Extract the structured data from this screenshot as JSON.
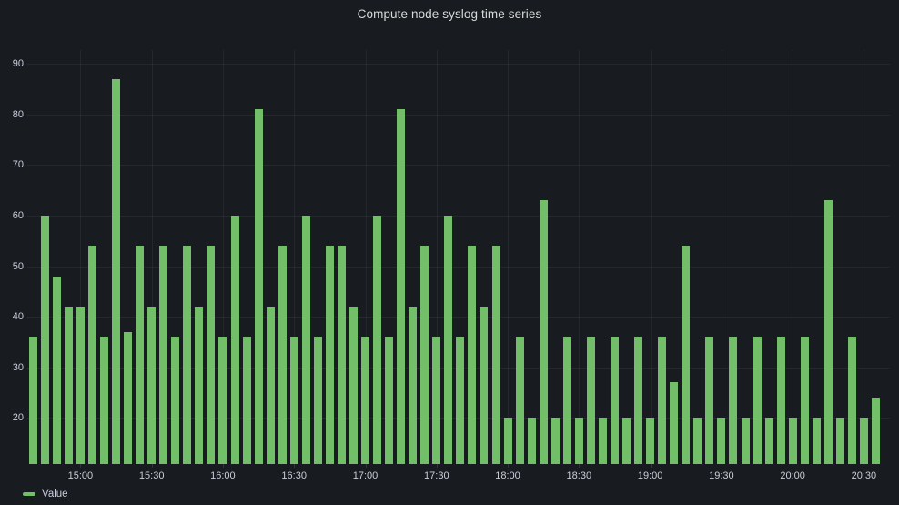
{
  "panel": {
    "title": "Compute node syslog time series"
  },
  "legend": {
    "items": [
      {
        "label": "Value",
        "color": "#73BF69"
      }
    ]
  },
  "colors": {
    "background": "#181b1f",
    "bar_green": "#73BF69",
    "text": "#ccccdc",
    "title_text": "#d8d9da",
    "grid": "rgba(204,204,220,0.08)"
  },
  "chart_data": {
    "type": "bar",
    "title": "Compute node syslog time series",
    "series": [
      {
        "name": "Value",
        "values": [
          36,
          60,
          48,
          42,
          42,
          54,
          36,
          87,
          37,
          54,
          42,
          54,
          36,
          54,
          42,
          54,
          36,
          60,
          36,
          81,
          42,
          54,
          36,
          60,
          36,
          54,
          54,
          42,
          36,
          60,
          36,
          81,
          42,
          54,
          36,
          60,
          36,
          54,
          42,
          54,
          20,
          36,
          20,
          63,
          20,
          36,
          20,
          36,
          20,
          36,
          20,
          36,
          20,
          36,
          27,
          54,
          20,
          36,
          20,
          36,
          20,
          36,
          20,
          36,
          20,
          36,
          20,
          63,
          20,
          36,
          20,
          24
        ]
      }
    ],
    "x_tick_labels": [
      "15:00",
      "15:30",
      "16:00",
      "16:30",
      "17:00",
      "17:30",
      "18:00",
      "18:30",
      "19:00",
      "19:30",
      "20:00",
      "20:30"
    ],
    "y_tick_labels": [
      20,
      30,
      40,
      50,
      60,
      70,
      80,
      90
    ],
    "ylim": [
      10.9,
      92.7
    ],
    "first_tick_bar_index": 4,
    "bars_per_tick_interval": 6,
    "grid": true,
    "legend_position": "bottom-left"
  }
}
